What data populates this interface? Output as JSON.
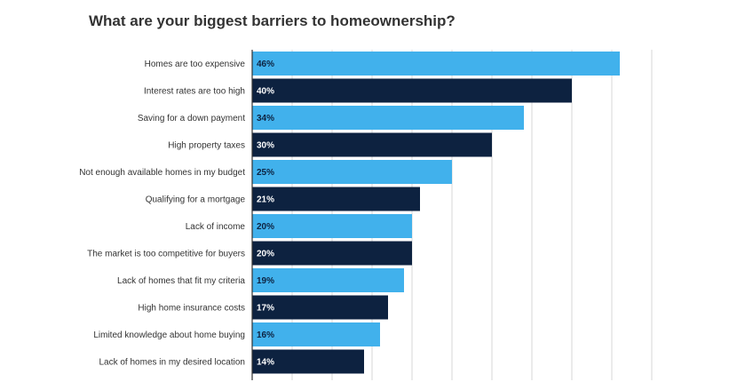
{
  "chart_data": {
    "type": "bar",
    "orientation": "horizontal",
    "title": "What are your biggest barriers to homeownership?",
    "categories": [
      "Homes are too expensive",
      "Interest rates are too high",
      "Saving for a down payment",
      "High property taxes",
      "Not enough available homes in my budget",
      "Qualifying for a mortgage",
      "Lack of income",
      "The market is too competitive for buyers",
      "Lack of homes that fit my criteria",
      "High home insurance costs",
      "Limited knowledge about home buying",
      "Lack of homes in my desired location"
    ],
    "values": [
      46,
      40,
      34,
      30,
      25,
      21,
      20,
      20,
      19,
      17,
      16,
      14
    ],
    "value_labels": [
      "46%",
      "40%",
      "34%",
      "30%",
      "25%",
      "21%",
      "20%",
      "20%",
      "19%",
      "17%",
      "16%",
      "14%"
    ],
    "xlim": [
      0,
      50
    ],
    "grid": true,
    "legend": "none",
    "colors": {
      "light": "#41b1ec",
      "dark": "#0d2240",
      "grid": "#d7d7d7",
      "axis": "#333333",
      "title": "#333333",
      "label_on_light": "#0d2240",
      "label_on_dark": "#ffffff"
    }
  }
}
